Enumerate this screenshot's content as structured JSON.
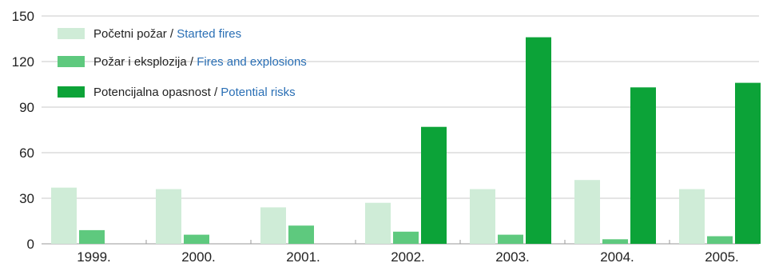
{
  "chart_data": {
    "type": "bar",
    "title": "",
    "xlabel": "",
    "ylabel": "",
    "categories": [
      "1999.",
      "2000.",
      "2001.",
      "2002.",
      "2003.",
      "2004.",
      "2005."
    ],
    "series": [
      {
        "name_local": "Početni požar",
        "name_en": "Started fires",
        "color": "#cfecd7",
        "values": [
          37,
          36,
          24,
          27,
          36,
          42,
          36
        ]
      },
      {
        "name_local": "Požar i eksplozija",
        "name_en": "Fires and explosions",
        "color": "#5ec97e",
        "values": [
          9,
          6,
          12,
          8,
          6,
          3,
          5
        ]
      },
      {
        "name_local": "Potencijalna opasnost",
        "name_en": "Potential risks",
        "color": "#0ca338",
        "values": [
          0,
          0,
          0,
          77,
          136,
          103,
          106
        ]
      }
    ],
    "ylim": [
      0,
      150
    ],
    "yticks": [
      0,
      30,
      60,
      90,
      120,
      150
    ],
    "grid": true,
    "legend": "top-left",
    "legend_separator": " / ",
    "colors": {
      "grid": "#c8c8c8",
      "axis": "#999999",
      "text": "#222222",
      "english_text": "#2a6fb5"
    }
  }
}
